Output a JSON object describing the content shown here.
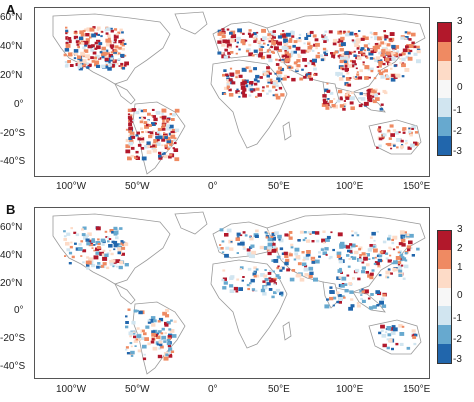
{
  "panels": [
    {
      "letter": "A",
      "variant": "warm"
    },
    {
      "letter": "B",
      "variant": "mixed"
    }
  ],
  "lat_ticks": [
    "60°N",
    "40°N",
    "20°N",
    "0°",
    "-20°S",
    "-40°S"
  ],
  "lon_ticks": [
    "100°W",
    "50°W",
    "0°",
    "50°E",
    "100°E",
    "150°E"
  ],
  "colorbar": {
    "ticks": [
      "3",
      "2",
      "1",
      "0",
      "-1",
      "-2",
      "-3"
    ],
    "colors": [
      "#b2182b",
      "#ef8a62",
      "#fddbc7",
      "#f7f7f7",
      "#d1e5f0",
      "#67a9cf",
      "#2166ac"
    ]
  },
  "colors": {
    "land_outline": "#9a9a9a",
    "background": "#ffffff"
  }
}
